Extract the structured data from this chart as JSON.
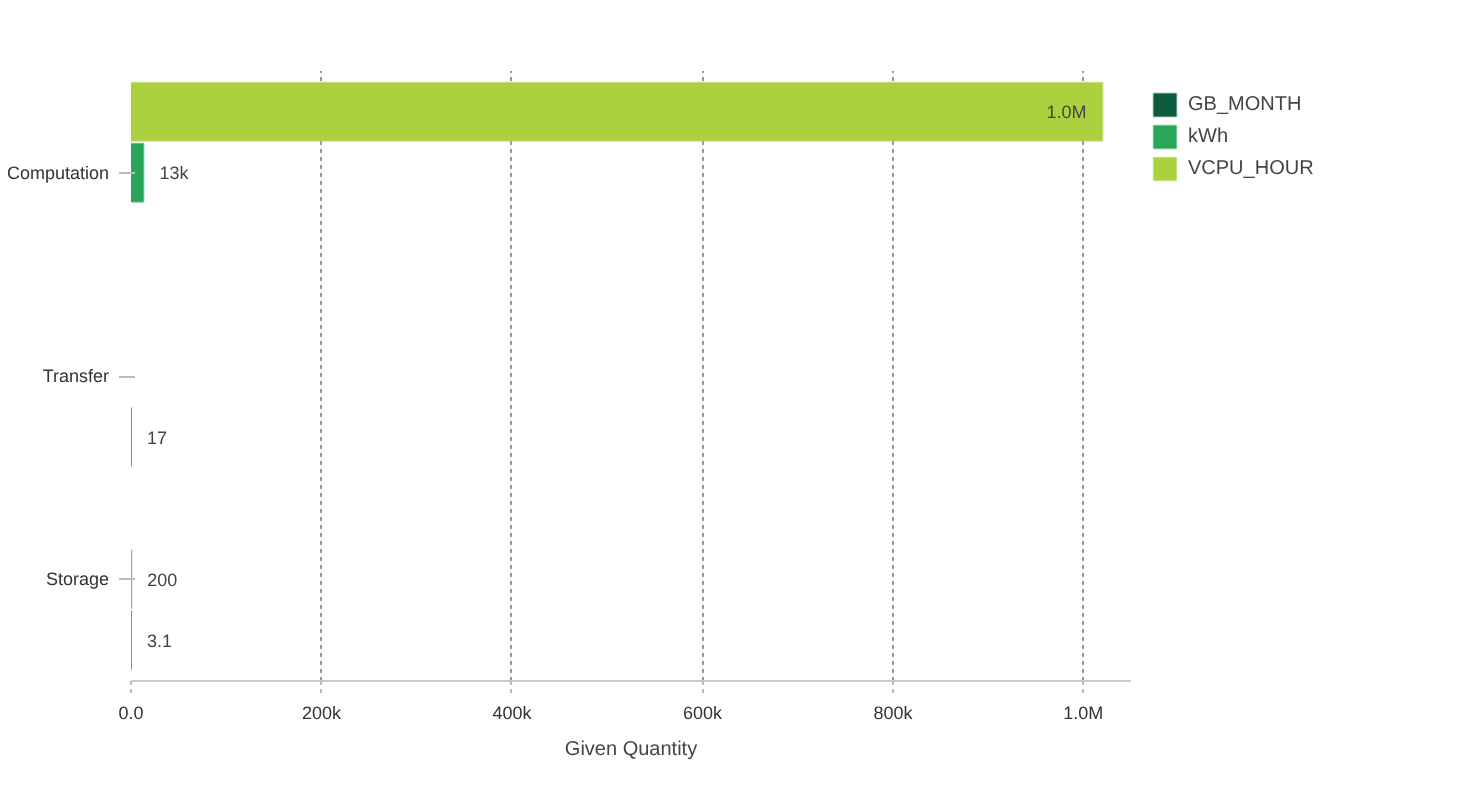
{
  "chart_data": {
    "type": "bar",
    "orientation": "horizontal",
    "xlabel": "Given Quantity",
    "categories": [
      "Computation",
      "Transfer",
      "Storage"
    ],
    "series": [
      {
        "name": "GB_MONTH",
        "color": "#0d5c3e",
        "values": [
          null,
          17,
          3.1
        ],
        "value_labels": [
          null,
          "17",
          "3.1"
        ]
      },
      {
        "name": "kWh",
        "color": "#2aa55a",
        "values": [
          13000,
          null,
          200
        ],
        "value_labels": [
          "13k",
          null,
          "200"
        ]
      },
      {
        "name": "VCPU_HOUR",
        "color": "#acd13f",
        "values": [
          1020000,
          null,
          null
        ],
        "value_labels": [
          "1.0M",
          null,
          null
        ]
      }
    ],
    "xlim": [
      0,
      1050000
    ],
    "xticks": [
      {
        "value": 0,
        "label": "0.0"
      },
      {
        "value": 200000,
        "label": "200k"
      },
      {
        "value": 400000,
        "label": "400k"
      },
      {
        "value": 600000,
        "label": "600k"
      },
      {
        "value": 800000,
        "label": "800k"
      },
      {
        "value": 1000000,
        "label": "1.0M"
      }
    ],
    "grid": "x",
    "legend": "top right"
  }
}
